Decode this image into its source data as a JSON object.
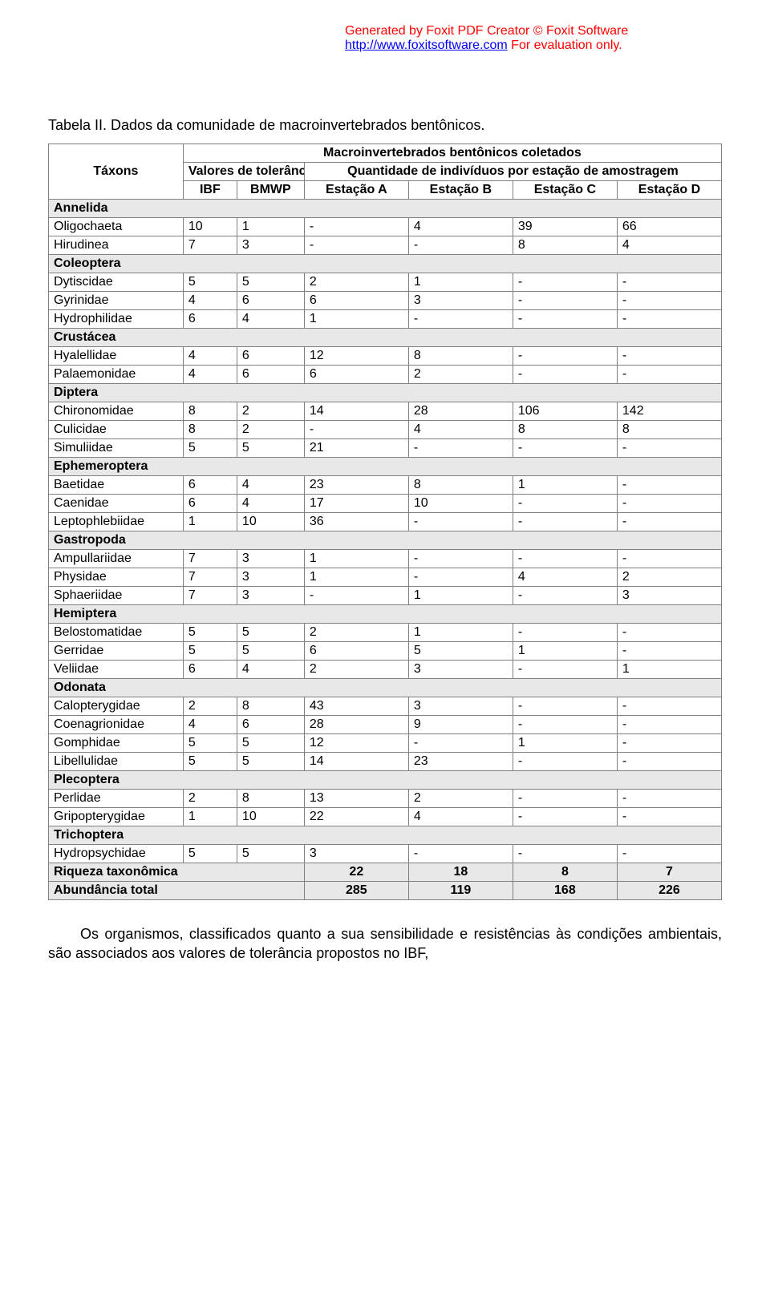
{
  "watermark": {
    "line1": "Generated by Foxit PDF Creator © Foxit Software",
    "link_text": "http://www.foxitsoftware.com",
    "link_href": "http://www.foxitsoftware.com",
    "rest": "   For evaluation only."
  },
  "caption": "Tabela II. Dados da comunidade de macroinvertebrados bentônicos.",
  "table": {
    "title": "Macroinvertebrados bentônicos coletados",
    "col_taxons": "Táxons",
    "col_tolerance": "Valores de tolerância",
    "col_quantity": "Quantidade de indivíduos por estação de amostragem",
    "sub_ibf": "IBF",
    "sub_bmwp": "BMWP",
    "sub_a": "Estação A",
    "sub_b": "Estação B",
    "sub_c": "Estação C",
    "sub_d": "Estação D",
    "groups": [
      {
        "name": "Annelida",
        "rows": [
          {
            "taxon": "Oligochaeta",
            "ibf": "10",
            "bmwp": "1",
            "a": "-",
            "b": "4",
            "c": "39",
            "d": "66"
          },
          {
            "taxon": "Hirudinea",
            "ibf": "7",
            "bmwp": "3",
            "a": "-",
            "b": "-",
            "c": "8",
            "d": "4"
          }
        ]
      },
      {
        "name": "Coleoptera",
        "rows": [
          {
            "taxon": "Dytiscidae",
            "ibf": "5",
            "bmwp": "5",
            "a": "2",
            "b": "1",
            "c": "-",
            "d": "-"
          },
          {
            "taxon": "Gyrinidae",
            "ibf": "4",
            "bmwp": "6",
            "a": "6",
            "b": "3",
            "c": "-",
            "d": "-"
          },
          {
            "taxon": "Hydrophilidae",
            "ibf": "6",
            "bmwp": "4",
            "a": "1",
            "b": "-",
            "c": "-",
            "d": "-"
          }
        ]
      },
      {
        "name": "Crustácea",
        "rows": [
          {
            "taxon": "Hyalellidae",
            "ibf": "4",
            "bmwp": "6",
            "a": "12",
            "b": "8",
            "c": "-",
            "d": "-"
          },
          {
            "taxon": "Palaemonidae",
            "ibf": "4",
            "bmwp": "6",
            "a": "6",
            "b": "2",
            "c": "-",
            "d": "-"
          }
        ]
      },
      {
        "name": "Diptera",
        "rows": [
          {
            "taxon": "Chironomidae",
            "ibf": "8",
            "bmwp": "2",
            "a": "14",
            "b": "28",
            "c": "106",
            "d": "142"
          },
          {
            "taxon": "Culicidae",
            "ibf": "8",
            "bmwp": "2",
            "a": "-",
            "b": "4",
            "c": "8",
            "d": "8"
          },
          {
            "taxon": "Simuliidae",
            "ibf": "5",
            "bmwp": "5",
            "a": "21",
            "b": "-",
            "c": "-",
            "d": "-"
          }
        ]
      },
      {
        "name": "Ephemeroptera",
        "rows": [
          {
            "taxon": "Baetidae",
            "ibf": "6",
            "bmwp": "4",
            "a": "23",
            "b": "8",
            "c": "1",
            "d": "-"
          },
          {
            "taxon": "Caenidae",
            "ibf": "6",
            "bmwp": "4",
            "a": "17",
            "b": "10",
            "c": "-",
            "d": "-"
          },
          {
            "taxon": "Leptophlebiidae",
            "ibf": "1",
            "bmwp": "10",
            "a": "36",
            "b": "-",
            "c": "-",
            "d": "-"
          }
        ]
      },
      {
        "name": "Gastropoda",
        "rows": [
          {
            "taxon": "Ampullariidae",
            "ibf": "7",
            "bmwp": "3",
            "a": "1",
            "b": "-",
            "c": "-",
            "d": "-"
          },
          {
            "taxon": "Physidae",
            "ibf": "7",
            "bmwp": "3",
            "a": "1",
            "b": "-",
            "c": "4",
            "d": "2"
          },
          {
            "taxon": "Sphaeriidae",
            "ibf": "7",
            "bmwp": "3",
            "a": "-",
            "b": "1",
            "c": "-",
            "d": "3"
          }
        ]
      },
      {
        "name": "Hemiptera",
        "rows": [
          {
            "taxon": "Belostomatidae",
            "ibf": "5",
            "bmwp": "5",
            "a": "2",
            "b": "1",
            "c": "-",
            "d": "-"
          },
          {
            "taxon": "Gerridae",
            "ibf": "5",
            "bmwp": "5",
            "a": "6",
            "b": "5",
            "c": "1",
            "d": "-"
          },
          {
            "taxon": "Veliidae",
            "ibf": "6",
            "bmwp": "4",
            "a": "2",
            "b": "3",
            "c": "-",
            "d": "1"
          }
        ]
      },
      {
        "name": "Odonata",
        "rows": [
          {
            "taxon": "Calopterygidae",
            "ibf": "2",
            "bmwp": "8",
            "a": "43",
            "b": "3",
            "c": "-",
            "d": "-"
          },
          {
            "taxon": "Coenagrionidae",
            "ibf": "4",
            "bmwp": "6",
            "a": "28",
            "b": "9",
            "c": "-",
            "d": "-"
          },
          {
            "taxon": "Gomphidae",
            "ibf": "5",
            "bmwp": "5",
            "a": "12",
            "b": "-",
            "c": "1",
            "d": "-"
          },
          {
            "taxon": "Libellulidae",
            "ibf": "5",
            "bmwp": "5",
            "a": "14",
            "b": "23",
            "c": "-",
            "d": "-"
          }
        ]
      },
      {
        "name": "Plecoptera",
        "rows": [
          {
            "taxon": "Perlidae",
            "ibf": "2",
            "bmwp": "8",
            "a": "13",
            "b": "2",
            "c": "-",
            "d": "-"
          },
          {
            "taxon": "Gripopterygidae",
            "ibf": "1",
            "bmwp": "10",
            "a": "22",
            "b": "4",
            "c": "-",
            "d": "-"
          }
        ]
      },
      {
        "name": "Trichoptera",
        "rows": [
          {
            "taxon": "Hydropsychidae",
            "ibf": "5",
            "bmwp": "5",
            "a": "3",
            "b": "-",
            "c": "-",
            "d": "-"
          }
        ]
      }
    ],
    "summary": [
      {
        "label": "Riqueza taxonômica",
        "a": "22",
        "b": "18",
        "c": "8",
        "d": "7"
      },
      {
        "label": "Abundância total",
        "a": "285",
        "b": "119",
        "c": "168",
        "d": "226"
      }
    ]
  },
  "body_text": "Os organismos, classificados quanto a sua sensibilidade e resistências às condições ambientais, são associados aos valores de tolerância propostos no IBF,"
}
